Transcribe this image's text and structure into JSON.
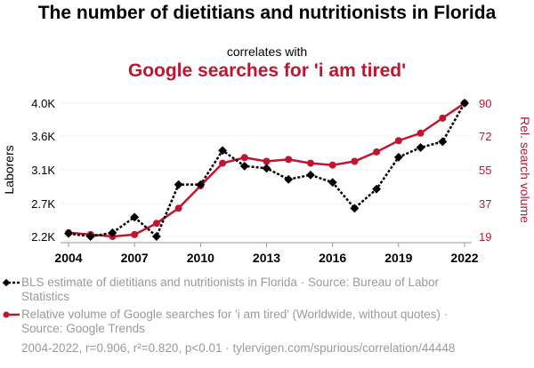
{
  "chart_data": {
    "type": "line",
    "title": "The number of dietitians and nutritionists in Florida",
    "subtitle": "correlates with",
    "title2": "Google searches for 'i am tired'",
    "x": [
      2004,
      2005,
      2006,
      2007,
      2008,
      2009,
      2010,
      2011,
      2012,
      2013,
      2014,
      2015,
      2016,
      2017,
      2018,
      2019,
      2020,
      2021,
      2022
    ],
    "xticks": [
      "2004",
      "2007",
      "2010",
      "2013",
      "2016",
      "2019",
      "2022"
    ],
    "ylabel": "Laborers",
    "ylabel_right": "Rel. search volume",
    "yticks_left": [
      "4.0K",
      "3.6K",
      "3.1K",
      "2.7K",
      "2.2K"
    ],
    "yticks_right": [
      "90",
      "72",
      "55",
      "37",
      "19"
    ],
    "ylim_left": [
      2200,
      4000
    ],
    "ylim_right": [
      19,
      90
    ],
    "series": [
      {
        "name": "BLS estimate of dietitians and nutritionists in Florida · Source: Bureau of Labor Statistics",
        "axis": "left",
        "color": "#000000",
        "values": [
          2240,
          2200,
          2250,
          2460,
          2200,
          2900,
          2900,
          3360,
          3150,
          3120,
          2970,
          3030,
          2930,
          2580,
          2840,
          3270,
          3400,
          3480,
          4000
        ]
      },
      {
        "name": "Relative volume of Google searches for 'i am tired' (Worldwide, without quotes) · Source: Google Trends",
        "axis": "right",
        "color": "#c0152f",
        "values": [
          21,
          20,
          19,
          20,
          26,
          34,
          46,
          58,
          61,
          59,
          60,
          58,
          57,
          59,
          64,
          70,
          74,
          82,
          90
        ]
      }
    ],
    "footer": "2004-2022, r=0.906, r²=0.820, p<0.01 · tylervigen.com/spurious/correlation/44448",
    "grid": true
  }
}
